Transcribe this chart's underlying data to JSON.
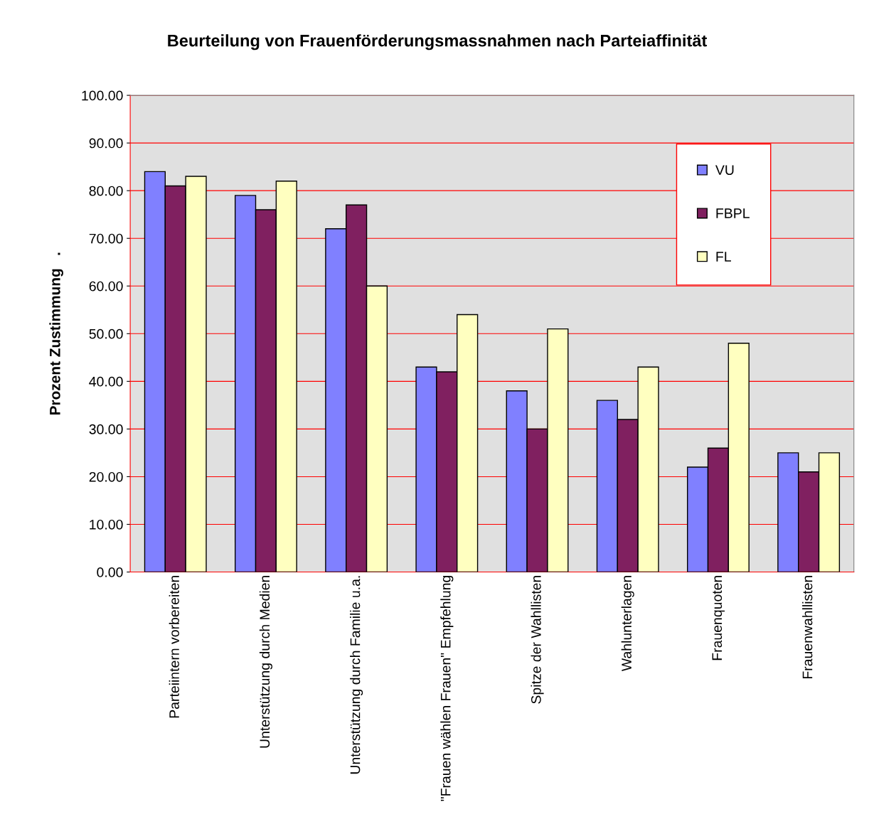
{
  "chart_data": {
    "type": "bar",
    "title": "Beurteilung von Frauenförderungsmassnahmen nach Parteiaffinität",
    "ylabel": "Prozent Zustimmung   .",
    "categories": [
      "Parteiintern vorbereiten",
      "Unterstützung durch Medien",
      "Unterstützung durch Familie u.a.",
      "\"Frauen wählen Frauen\" Empfehlung",
      "Spitze der Wahllisten",
      "Wahlunterlagen",
      "Frauenquoten",
      "Frauenwahllisten"
    ],
    "series": [
      {
        "name": "VU",
        "color": "#8080ff",
        "values": [
          84,
          79,
          72,
          43,
          38,
          36,
          22,
          25
        ]
      },
      {
        "name": "FBPL",
        "color": "#802060",
        "values": [
          81,
          76,
          77,
          42,
          30,
          32,
          26,
          21
        ]
      },
      {
        "name": "FL",
        "color": "#ffffc0",
        "values": [
          83,
          82,
          60,
          54,
          51,
          43,
          48,
          25
        ]
      }
    ],
    "ylim": [
      0,
      100
    ],
    "yticks": [
      {
        "value": 0,
        "label": "0.00"
      },
      {
        "value": 10,
        "label": "10.00"
      },
      {
        "value": 20,
        "label": "20.00"
      },
      {
        "value": 30,
        "label": "30.00"
      },
      {
        "value": 40,
        "label": "40.00"
      },
      {
        "value": 50,
        "label": "50.00"
      },
      {
        "value": 60,
        "label": "60.00"
      },
      {
        "value": 70,
        "label": "70.00"
      },
      {
        "value": 80,
        "label": "80.00"
      },
      {
        "value": 90,
        "label": "90.00"
      },
      {
        "value": 100,
        "label": "100.00"
      }
    ],
    "grid": "y",
    "legend": "right"
  }
}
